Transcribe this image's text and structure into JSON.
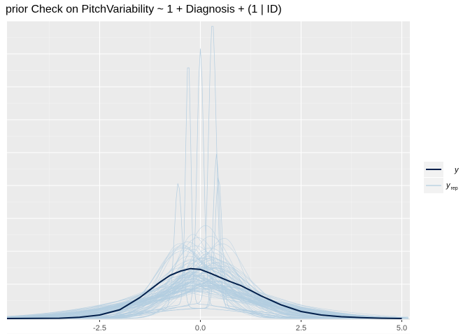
{
  "chart_data": {
    "type": "line",
    "title": "prior Check on PitchVariability ~ 1 + Diagnosis + (1 | ID)",
    "xlabel": "",
    "ylabel": "",
    "xlim": [
      -4.8,
      5.2
    ],
    "ylim": [
      0,
      1.0
    ],
    "x_ticks": [
      -2.5,
      0.0,
      2.5,
      5.0
    ],
    "x_tick_labels": [
      "-2.5",
      "0.0",
      "2.5",
      "5.0"
    ],
    "y_ticks_labeled": false,
    "grid": true,
    "legend_position": "right",
    "legend": [
      {
        "label": "y",
        "color": "#011f4b",
        "series": "y"
      },
      {
        "label": "y",
        "subscript": "rep",
        "color": "#b3cde0",
        "series": "y_rep"
      }
    ],
    "series": [
      {
        "name": "y",
        "color": "#011f4b",
        "x": [
          -4.8,
          -3.5,
          -3.0,
          -2.5,
          -2.0,
          -1.5,
          -1.0,
          -0.75,
          -0.5,
          -0.25,
          0.0,
          0.25,
          0.5,
          0.75,
          1.0,
          1.25,
          1.5,
          2.0,
          2.5,
          3.0,
          3.5,
          4.0,
          4.5,
          5.0
        ],
        "y": [
          0.0,
          0.001,
          0.004,
          0.012,
          0.03,
          0.072,
          0.125,
          0.148,
          0.162,
          0.171,
          0.168,
          0.155,
          0.14,
          0.126,
          0.113,
          0.096,
          0.078,
          0.047,
          0.024,
          0.012,
          0.006,
          0.003,
          0.001,
          0.0
        ]
      }
    ],
    "y_rep": {
      "description_count": 100,
      "peaks": [
        {
          "x": 0.3,
          "y": 0.97
        },
        {
          "x": 0.0,
          "y": 0.88
        },
        {
          "x": -0.3,
          "y": 0.85
        },
        {
          "x": 0.4,
          "y": 0.53
        },
        {
          "x": -0.55,
          "y": 0.43
        },
        {
          "x": 0.45,
          "y": 0.45
        }
      ]
    }
  }
}
